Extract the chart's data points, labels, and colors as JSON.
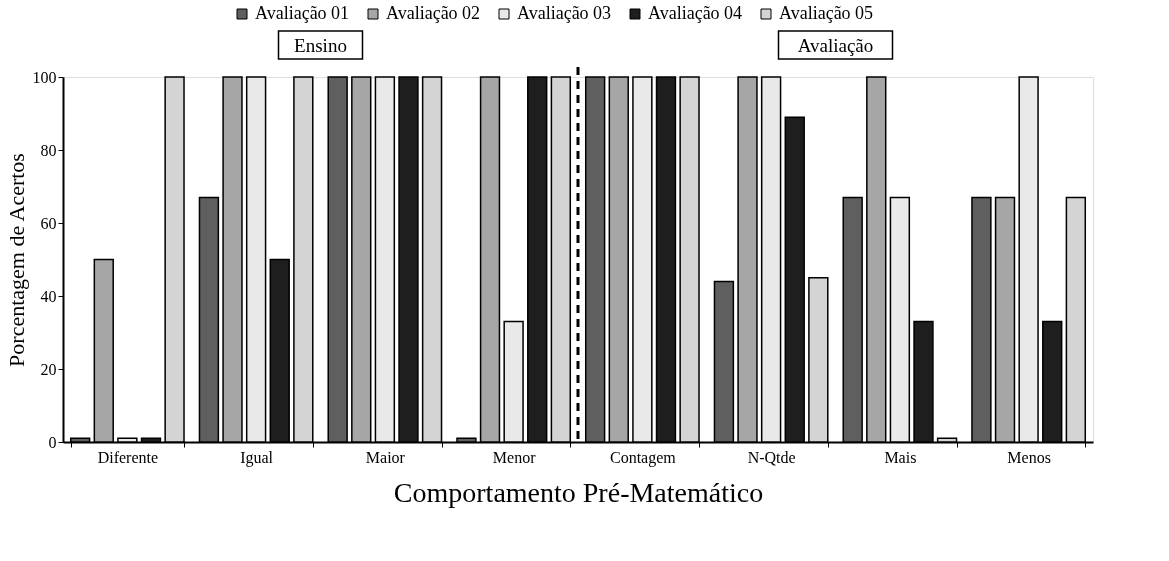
{
  "chart_data": {
    "type": "bar",
    "xlabel": "Comportamento  Pré-Matemático",
    "ylabel": "Porcentagem  de Acertos",
    "categories": [
      "Diferente",
      "Igual",
      "Maior",
      "Menor",
      "Contagem",
      "N-Qtde",
      "Mais",
      "Menos"
    ],
    "series": [
      {
        "name": "Avaliação 01",
        "color": "#5f5f5f",
        "values": [
          1,
          67,
          100,
          1,
          100,
          44,
          67,
          67
        ]
      },
      {
        "name": "Avaliação 02",
        "color": "#a6a6a6",
        "values": [
          50,
          100,
          100,
          100,
          100,
          100,
          100,
          67
        ]
      },
      {
        "name": "Avaliação 03",
        "color": "#e9e9e9",
        "values": [
          1,
          100,
          100,
          33,
          100,
          100,
          67,
          100
        ]
      },
      {
        "name": "Avaliação 04",
        "color": "#1e1e1e",
        "values": [
          1,
          50,
          100,
          100,
          100,
          89,
          33,
          33
        ]
      },
      {
        "name": "Avaliação 05",
        "color": "#d4d4d4",
        "values": [
          100,
          100,
          100,
          100,
          100,
          45,
          1,
          67
        ]
      }
    ],
    "ylim": [
      0,
      100
    ],
    "yticks": [
      0,
      20,
      40,
      60,
      80,
      100
    ],
    "grid": false,
    "legend": "top",
    "annotations": [
      "Ensino",
      "Avaliação"
    ]
  }
}
